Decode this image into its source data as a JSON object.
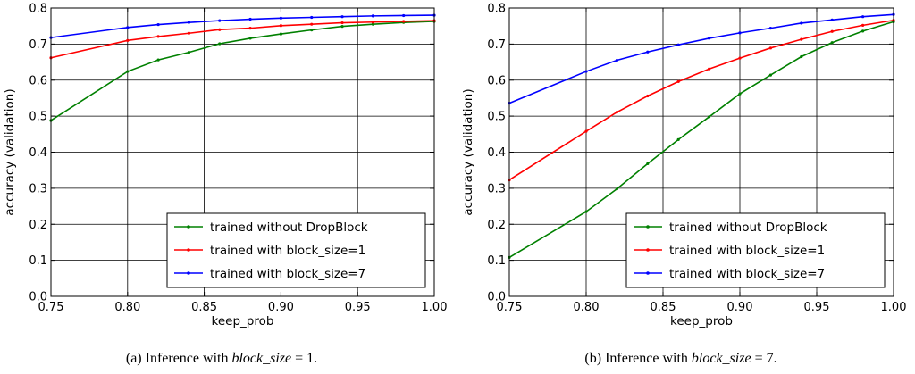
{
  "chart_data": [
    {
      "type": "line",
      "caption": {
        "prefix": "(a) Inference with ",
        "var": "block_size",
        "suffix": " = 1."
      },
      "xlabel": "keep_prob",
      "ylabel": "accuracy (validation)",
      "xlim": [
        0.75,
        1.0
      ],
      "ylim": [
        0.0,
        0.8
      ],
      "xticks": [
        "0.75",
        "0.80",
        "0.85",
        "0.90",
        "0.95",
        "1.00"
      ],
      "yticks": [
        "0.0",
        "0.1",
        "0.2",
        "0.3",
        "0.4",
        "0.5",
        "0.6",
        "0.7",
        "0.8"
      ],
      "grid": true,
      "legend_position": "lower-right",
      "series": [
        {
          "name": "trained without DropBlock",
          "color": "#008000",
          "x": [
            0.75,
            0.8,
            0.82,
            0.84,
            0.86,
            0.88,
            0.9,
            0.92,
            0.94,
            0.96,
            0.98,
            1.0
          ],
          "y": [
            0.488,
            0.624,
            0.656,
            0.677,
            0.701,
            0.716,
            0.728,
            0.739,
            0.749,
            0.755,
            0.76,
            0.763
          ]
        },
        {
          "name": "trained with block_size=1",
          "color": "#ff0000",
          "x": [
            0.75,
            0.8,
            0.82,
            0.84,
            0.86,
            0.88,
            0.9,
            0.92,
            0.94,
            0.96,
            0.98,
            1.0
          ],
          "y": [
            0.662,
            0.71,
            0.721,
            0.73,
            0.74,
            0.744,
            0.751,
            0.755,
            0.759,
            0.761,
            0.763,
            0.765
          ]
        },
        {
          "name": "trained with block_size=7",
          "color": "#0000ff",
          "x": [
            0.75,
            0.8,
            0.82,
            0.84,
            0.86,
            0.88,
            0.9,
            0.92,
            0.94,
            0.96,
            0.98,
            1.0
          ],
          "y": [
            0.718,
            0.746,
            0.754,
            0.76,
            0.765,
            0.769,
            0.772,
            0.774,
            0.776,
            0.778,
            0.779,
            0.78
          ]
        }
      ]
    },
    {
      "type": "line",
      "caption": {
        "prefix": "(b) Inference with ",
        "var": "block_size",
        "suffix": " = 7."
      },
      "xlabel": "keep_prob",
      "ylabel": "accuracy (validation)",
      "xlim": [
        0.75,
        1.0
      ],
      "ylim": [
        0.0,
        0.8
      ],
      "xticks": [
        "0.75",
        "0.80",
        "0.85",
        "0.90",
        "0.95",
        "1.00"
      ],
      "yticks": [
        "0.0",
        "0.1",
        "0.2",
        "0.3",
        "0.4",
        "0.5",
        "0.6",
        "0.7",
        "0.8"
      ],
      "grid": true,
      "legend_position": "lower-right",
      "series": [
        {
          "name": "trained without DropBlock",
          "color": "#008000",
          "x": [
            0.75,
            0.8,
            0.82,
            0.84,
            0.86,
            0.88,
            0.9,
            0.92,
            0.94,
            0.96,
            0.98,
            1.0
          ],
          "y": [
            0.108,
            0.235,
            0.298,
            0.368,
            0.435,
            0.498,
            0.562,
            0.614,
            0.665,
            0.704,
            0.736,
            0.762
          ]
        },
        {
          "name": "trained with block_size=1",
          "color": "#ff0000",
          "x": [
            0.75,
            0.8,
            0.82,
            0.84,
            0.86,
            0.88,
            0.9,
            0.92,
            0.94,
            0.96,
            0.98,
            1.0
          ],
          "y": [
            0.323,
            0.458,
            0.511,
            0.556,
            0.596,
            0.631,
            0.661,
            0.689,
            0.713,
            0.735,
            0.752,
            0.766
          ]
        },
        {
          "name": "trained with block_size=7",
          "color": "#0000ff",
          "x": [
            0.75,
            0.8,
            0.82,
            0.84,
            0.86,
            0.88,
            0.9,
            0.92,
            0.94,
            0.96,
            0.98,
            1.0
          ],
          "y": [
            0.536,
            0.624,
            0.655,
            0.678,
            0.698,
            0.716,
            0.731,
            0.744,
            0.758,
            0.767,
            0.776,
            0.782
          ]
        }
      ]
    }
  ]
}
